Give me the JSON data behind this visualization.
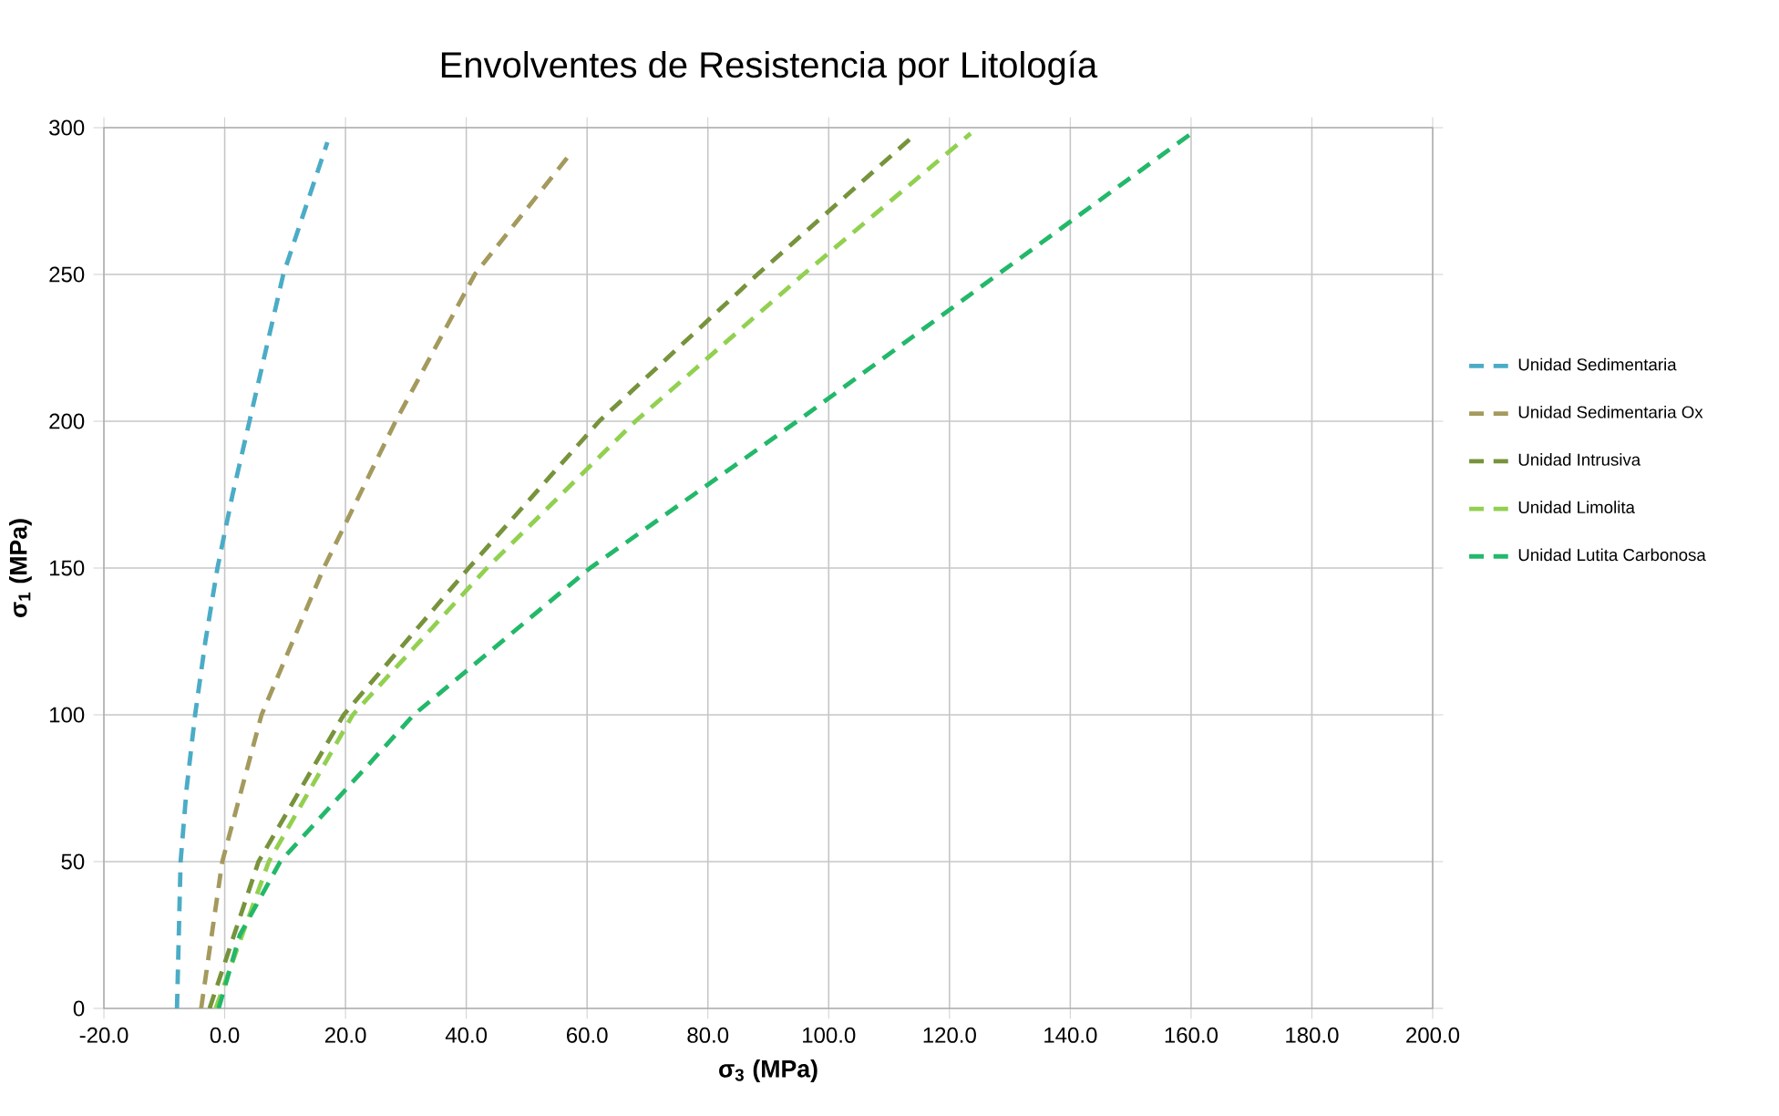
{
  "chart_data": {
    "type": "line",
    "title": "Envolventes de Resistencia por Litología",
    "xlabel": "σ$_{3}$ (MPa)",
    "ylabel": "σ$_{1}$ (MPa)",
    "xlim": [
      -20,
      200
    ],
    "ylim": [
      0,
      300
    ],
    "xticks": [
      {
        "value": -20,
        "label": "-20.0"
      },
      {
        "value": 0,
        "label": "0.0"
      },
      {
        "value": 20,
        "label": "20.0"
      },
      {
        "value": 40,
        "label": "40.0"
      },
      {
        "value": 60,
        "label": "60.0"
      },
      {
        "value": 80,
        "label": "80.0"
      },
      {
        "value": 100,
        "label": "100.0"
      },
      {
        "value": 120,
        "label": "120.0"
      },
      {
        "value": 140,
        "label": "140.0"
      },
      {
        "value": 160,
        "label": "160.0"
      },
      {
        "value": 180,
        "label": "180.0"
      },
      {
        "value": 200,
        "label": "200.0"
      }
    ],
    "yticks": [
      0,
      50,
      100,
      150,
      200,
      250,
      300
    ],
    "grid": true,
    "legend": "right",
    "marker": "none",
    "line_style": "dashed",
    "series": [
      {
        "name": "Unidad Sedimentaria",
        "color": "#4bacc6",
        "x": [
          -7.9,
          -7.6,
          -7.3,
          -6.3,
          -4.9,
          -3.2,
          -1.2,
          1.3,
          4.1,
          9.7,
          17
        ],
        "values": [
          0,
          25,
          50,
          75,
          100,
          125,
          150,
          175,
          200,
          250,
          295
        ]
      },
      {
        "name": "Unidad Sedimentaria Ox",
        "color": "#a49a5e",
        "x": [
          -3.9,
          -0.4,
          6.1,
          16.4,
          28.3,
          41.4,
          57.2
        ],
        "values": [
          0,
          50,
          100,
          150,
          200,
          250,
          291
        ]
      },
      {
        "name": "Unidad Intrusiva",
        "color": "#77933c",
        "x": [
          -2.5,
          5.6,
          19.7,
          40.4,
          62,
          88.2,
          113.4
        ],
        "values": [
          0,
          50,
          100,
          150,
          200,
          250,
          296
        ]
      },
      {
        "name": "Unidad Limolita",
        "color": "#92d050",
        "x": [
          -1.5,
          7.3,
          21.2,
          43.4,
          68,
          95.8,
          123.5
        ],
        "values": [
          0,
          50,
          100,
          150,
          200,
          250,
          298
        ]
      },
      {
        "name": "Unidad Lutita Carbonosa",
        "color": "#23b86a",
        "x": [
          -1,
          2.5,
          9.2,
          31.3,
          60.5,
          94.8,
          128,
          160.7
        ],
        "values": [
          0,
          25,
          50,
          100,
          150,
          200,
          250,
          299
        ]
      }
    ]
  }
}
